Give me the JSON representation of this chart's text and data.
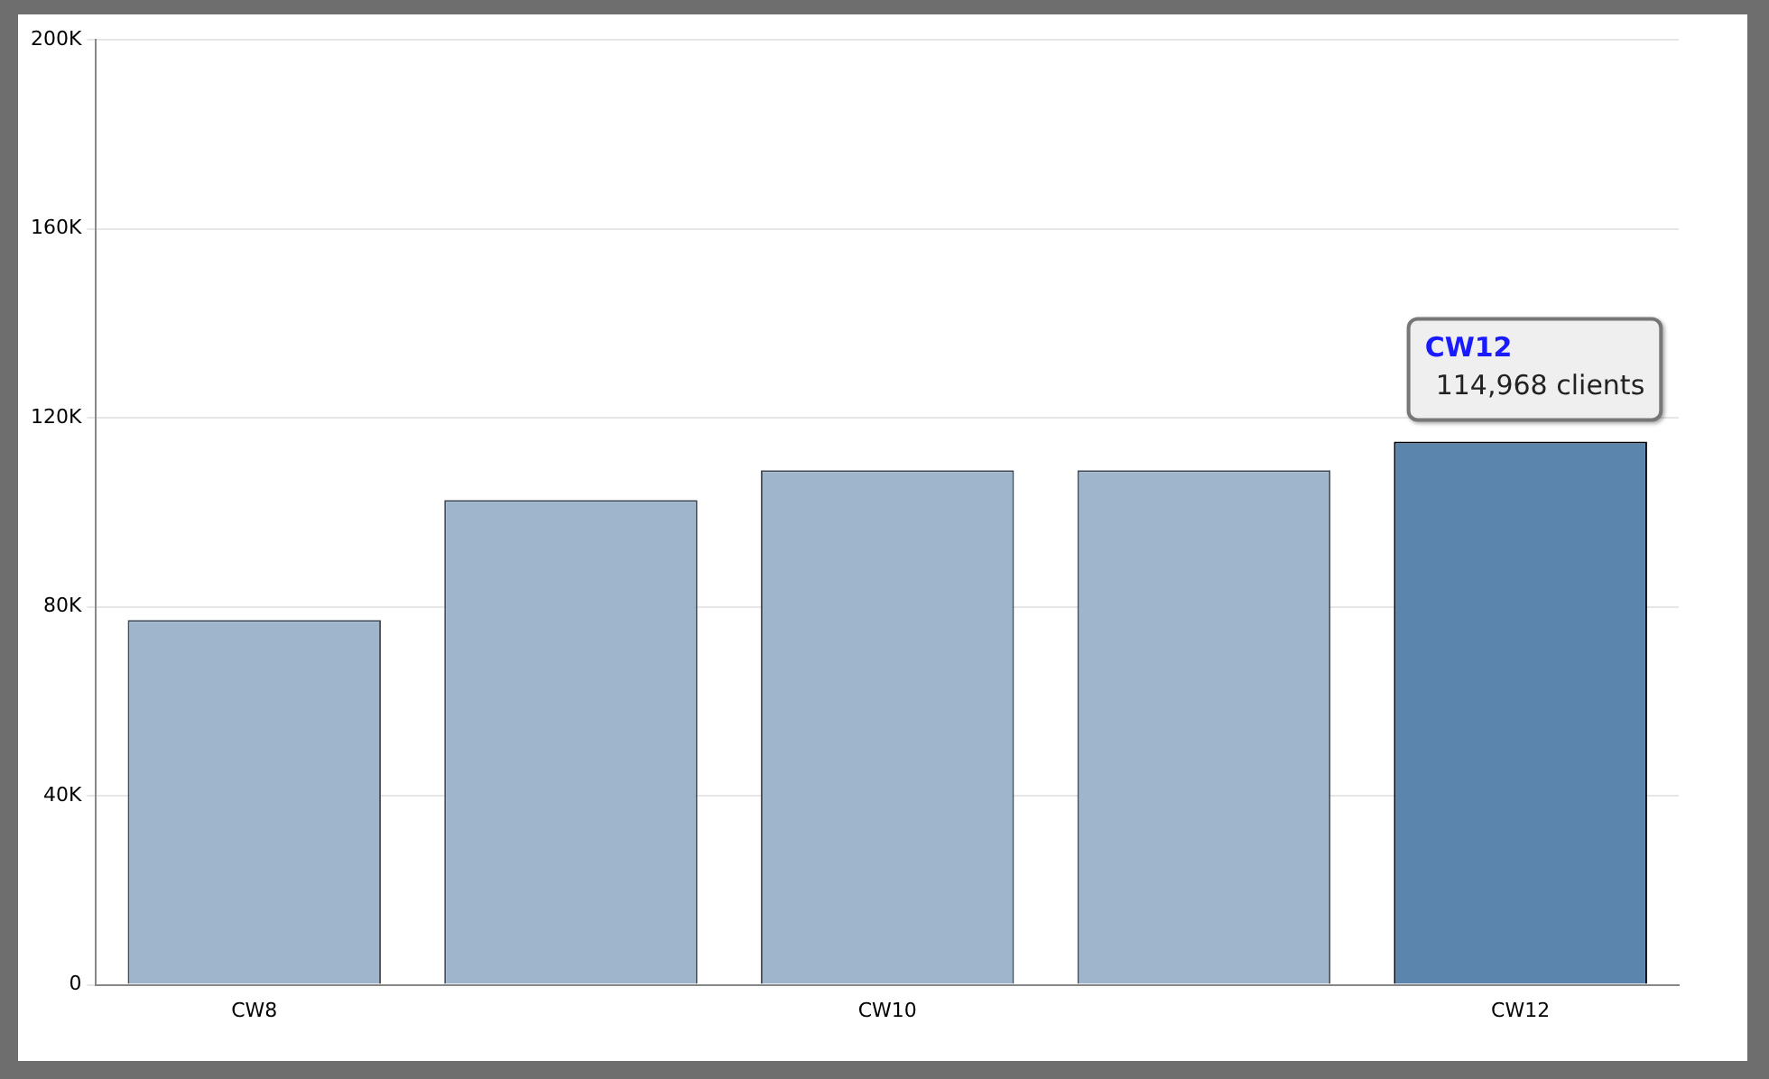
{
  "chart_data": {
    "type": "bar",
    "categories": [
      "CW8",
      null,
      "CW10",
      null,
      "CW12"
    ],
    "values": [
      77200,
      102600,
      108900,
      108900,
      114968
    ],
    "colors": [
      "#9fb5cc",
      "#9fb5cc",
      "#9fb5cc",
      "#9fb5cc",
      "#5b85ad"
    ],
    "ylim": [
      0,
      200000
    ],
    "yticks": [
      {
        "value": 0,
        "label": "0"
      },
      {
        "value": 40000,
        "label": "40K"
      },
      {
        "value": 80000,
        "label": "80K"
      },
      {
        "value": 120000,
        "label": "120K"
      },
      {
        "value": 160000,
        "label": "160K"
      },
      {
        "value": 200000,
        "label": "200K"
      }
    ],
    "grid": "y",
    "annotations": [
      {
        "text": "CW12",
        "x": "CW12",
        "y": 114968
      },
      {
        "text": "114,968 clients",
        "x": "CW12",
        "y": 114968
      }
    ]
  }
}
